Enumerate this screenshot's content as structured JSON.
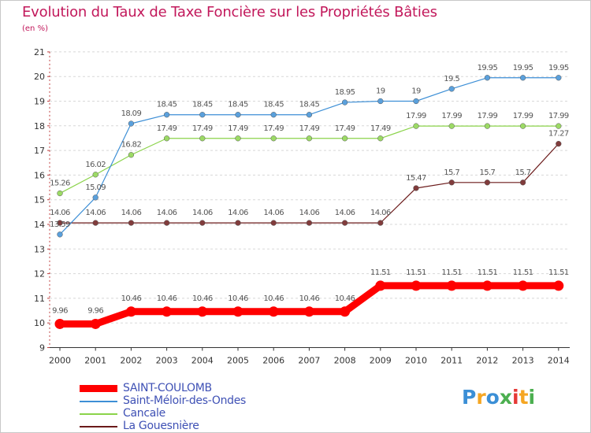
{
  "title": "Evolution du Taux de Taxe Foncière sur les Propriétés Bâties",
  "subtitle": "(en %)",
  "logo": {
    "text": "Proxiti",
    "colors": [
      "#3b8fd6",
      "#f5a623",
      "#3b8fd6",
      "#4caf50",
      "#e53935",
      "#f5a623",
      "#4caf50"
    ]
  },
  "chart_data": {
    "type": "line",
    "x": [
      2000,
      2001,
      2002,
      2003,
      2004,
      2005,
      2006,
      2007,
      2008,
      2009,
      2010,
      2011,
      2012,
      2013,
      2014
    ],
    "ylim": [
      9,
      21
    ],
    "yticks": [
      9,
      10,
      11,
      12,
      13,
      14,
      15,
      16,
      17,
      18,
      19,
      20,
      21
    ],
    "grid": "dashed-horizontal",
    "legend_position": "bottom-left",
    "series": [
      {
        "name": "SAINT-COULOMB",
        "color": "#ff0000",
        "thick": true,
        "values": [
          9.96,
          9.96,
          10.46,
          10.46,
          10.46,
          10.46,
          10.46,
          10.46,
          10.46,
          11.51,
          11.51,
          11.51,
          11.51,
          11.51,
          11.51
        ],
        "labels": [
          "9.96",
          "9.96",
          "10.46",
          "10.46",
          "10.46",
          "10.46",
          "10.46",
          "10.46",
          "10.46",
          "11.51",
          "11.51",
          "11.51",
          "11.51",
          "11.51",
          "11.51"
        ]
      },
      {
        "name": "Saint-Méloir-des-Ondes",
        "color": "#3d8fd6",
        "thick": false,
        "values": [
          13.59,
          15.09,
          18.09,
          18.45,
          18.45,
          18.45,
          18.45,
          18.45,
          18.95,
          19,
          19,
          19.5,
          19.95,
          19.95,
          19.95
        ],
        "labels": [
          "13.59",
          "15.09",
          "18.09",
          "18.45",
          "18.45",
          "18.45",
          "18.45",
          "18.45",
          "18.95",
          "19",
          "19",
          "19.5",
          "19.95",
          "19.95",
          "19.95"
        ]
      },
      {
        "name": "Cancale",
        "color": "#8bd34a",
        "thick": false,
        "values": [
          15.26,
          16.02,
          16.82,
          17.49,
          17.49,
          17.49,
          17.49,
          17.49,
          17.49,
          17.49,
          17.99,
          17.99,
          17.99,
          17.99,
          17.99
        ],
        "labels": [
          "15.26",
          "16.02",
          "16.82",
          "17.49",
          "17.49",
          "17.49",
          "17.49",
          "17.49",
          "17.49",
          "17.49",
          "17.99",
          "17.99",
          "17.99",
          "17.99",
          "17.99"
        ]
      },
      {
        "name": "La Gouesnière",
        "color": "#6b1a1a",
        "thick": false,
        "values": [
          14.06,
          14.06,
          14.06,
          14.06,
          14.06,
          14.06,
          14.06,
          14.06,
          14.06,
          14.06,
          15.47,
          15.7,
          15.7,
          15.7,
          17.27
        ],
        "labels": [
          "14.06",
          "14.06",
          "14.06",
          "14.06",
          "14.06",
          "14.06",
          "14.06",
          "14.06",
          "14.06",
          "14.06",
          "15.47",
          "15.7",
          "15.7",
          "15.7",
          "17.27"
        ]
      }
    ]
  }
}
